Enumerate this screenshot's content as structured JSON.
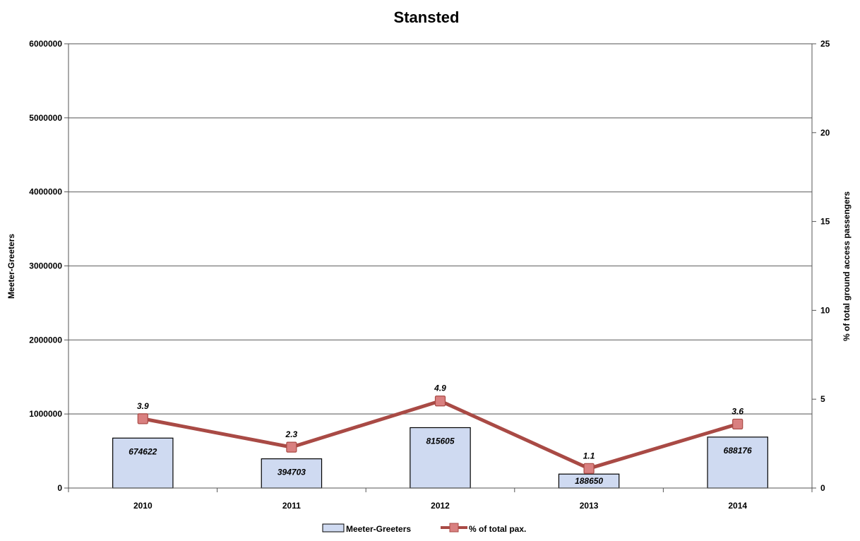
{
  "chart_data": {
    "type": "bar",
    "title": "Stansted",
    "categories": [
      "2010",
      "2011",
      "2012",
      "2013",
      "2014"
    ],
    "ylabel": "Meeter-Greeters",
    "y2label": "% of total ground access passengers",
    "ylim": [
      0,
      6000000
    ],
    "y2lim": [
      0,
      25
    ],
    "yticks": [
      "0",
      "1000000",
      "2000000",
      "3000000",
      "4000000",
      "5000000",
      "6000000"
    ],
    "y2ticks": [
      "0",
      "5",
      "10",
      "15",
      "20",
      "25"
    ],
    "grid": true,
    "legend_position": "bottom",
    "series": [
      {
        "name": "Meeter-Greeters",
        "type": "bar",
        "axis": "left",
        "values": [
          674622,
          394703,
          815605,
          188650,
          688176
        ],
        "labels": [
          "674622",
          "394703",
          "815605",
          "188650",
          "688176"
        ],
        "color": "#cfdaf1"
      },
      {
        "name": "% of total pax.",
        "type": "line",
        "axis": "right",
        "values": [
          3.9,
          2.3,
          4.9,
          1.1,
          3.6
        ],
        "labels": [
          "3.9",
          "2.3",
          "4.9",
          "1.1",
          "3.6"
        ],
        "color": "#a94a45",
        "marker_color": "#d98080"
      }
    ]
  }
}
